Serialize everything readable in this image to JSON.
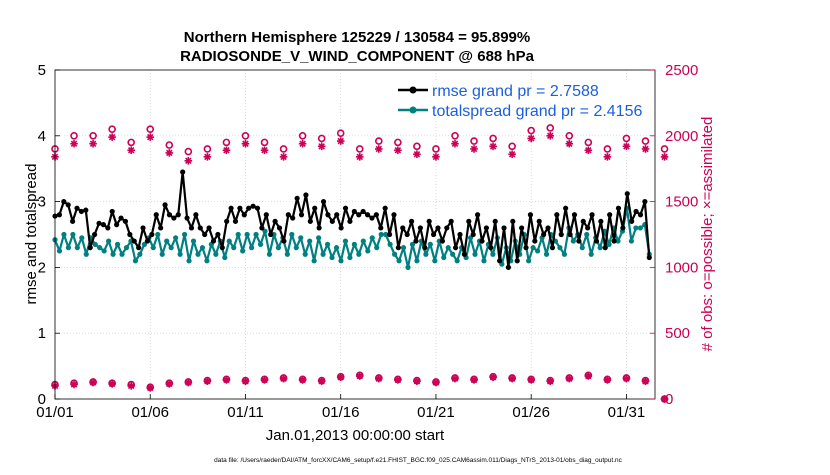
{
  "chart_data": {
    "type": "line",
    "title_line1": "Northern Hemisphere 125229 / 130584 = 95.899%",
    "title_line2": "RADIOSONDE_V_WIND_COMPONENT @ 688 hPa",
    "xlabel": "Jan.01,2013 00:00:00 start",
    "ylabel_left": "rmse and totalspread",
    "ylabel_right": "# of obs: o=possible; ×=assimilated",
    "footnote": "data file: /Users/raeder/DAI/ATM_forcXX/CAM6_setup/f.e21.FHIST_BGC.f09_025.CAM6assim.011/Diags_NTrS_2013-01/obs_diag_output.nc",
    "x_range": [
      1,
      32.5
    ],
    "ylim_left": [
      0,
      5
    ],
    "ylim_right": [
      0,
      2500
    ],
    "x_ticks": [
      {
        "value": 1,
        "label": "01/01"
      },
      {
        "value": 6,
        "label": "01/06"
      },
      {
        "value": 11,
        "label": "01/11"
      },
      {
        "value": 16,
        "label": "01/16"
      },
      {
        "value": 21,
        "label": "01/21"
      },
      {
        "value": 26,
        "label": "01/26"
      },
      {
        "value": 31,
        "label": "01/31"
      }
    ],
    "y_ticks_left": [
      "0",
      "1",
      "2",
      "3",
      "4",
      "5"
    ],
    "y_ticks_right": [
      "0",
      "500",
      "1000",
      "1500",
      "2000",
      "2500"
    ],
    "legend": [
      {
        "label": "rmse grand pr = 2.7588",
        "color": "#000000"
      },
      {
        "label": "totalspread grand pr = 2.4156",
        "color": "#008080"
      }
    ],
    "colors": {
      "rmse": "#000000",
      "spread": "#008080",
      "obs": "#cc0055",
      "axis_right": "#cc0055"
    },
    "series": [
      {
        "name": "rmse",
        "axis": "left",
        "values": [
          2.78,
          2.8,
          3.0,
          2.95,
          2.7,
          2.9,
          2.85,
          2.87,
          2.3,
          2.5,
          2.67,
          2.65,
          2.6,
          2.85,
          2.65,
          2.75,
          2.7,
          2.5,
          2.4,
          2.3,
          2.6,
          2.4,
          2.5,
          2.8,
          2.6,
          2.95,
          2.8,
          2.75,
          2.8,
          3.45,
          2.75,
          2.6,
          2.8,
          2.6,
          2.5,
          2.6,
          2.4,
          2.5,
          2.3,
          2.7,
          2.9,
          2.7,
          2.9,
          2.8,
          2.9,
          2.93,
          2.9,
          2.6,
          2.8,
          2.5,
          2.7,
          2.6,
          2.4,
          2.8,
          2.75,
          3.05,
          2.8,
          3.1,
          2.7,
          2.9,
          2.6,
          3.0,
          2.8,
          2.7,
          2.8,
          2.6,
          2.9,
          2.7,
          2.85,
          2.8,
          2.85,
          2.8,
          2.75,
          2.8,
          2.6,
          2.9,
          2.5,
          2.8,
          2.3,
          2.6,
          2.5,
          2.7,
          2.4,
          2.6,
          2.3,
          2.7,
          2.5,
          2.6,
          2.4,
          2.6,
          2.7,
          2.3,
          2.5,
          2.2,
          2.7,
          2.5,
          2.8,
          2.4,
          2.6,
          2.3,
          2.7,
          2.1,
          2.6,
          2.0,
          2.7,
          2.1,
          2.6,
          2.3,
          2.8,
          2.4,
          2.7,
          2.5,
          2.6,
          2.3,
          2.8,
          2.5,
          2.9,
          2.5,
          2.8,
          2.4,
          2.7,
          2.6,
          2.8,
          2.4,
          2.7,
          2.3,
          2.8,
          2.4,
          2.9,
          2.6,
          3.12,
          2.7,
          2.85,
          2.8,
          3.0,
          2.15
        ]
      },
      {
        "name": "totalspread",
        "axis": "left",
        "values": [
          2.42,
          2.25,
          2.5,
          2.3,
          2.5,
          2.3,
          2.45,
          2.2,
          2.45,
          2.35,
          2.3,
          2.25,
          2.4,
          2.2,
          2.35,
          2.2,
          2.3,
          2.4,
          2.1,
          2.2,
          2.35,
          2.45,
          2.3,
          2.5,
          2.2,
          2.4,
          2.3,
          2.45,
          2.2,
          2.5,
          2.1,
          2.4,
          2.2,
          2.3,
          2.1,
          2.35,
          2.2,
          2.4,
          2.15,
          2.4,
          2.3,
          2.5,
          2.25,
          2.5,
          2.3,
          2.5,
          2.35,
          2.55,
          2.2,
          2.5,
          2.3,
          2.45,
          2.2,
          2.5,
          2.3,
          2.45,
          2.2,
          2.4,
          2.1,
          2.45,
          2.2,
          2.35,
          2.15,
          2.3,
          2.1,
          2.4,
          2.15,
          2.35,
          2.2,
          2.4,
          2.25,
          2.45,
          2.3,
          2.5,
          2.5,
          2.35,
          2.2,
          2.1,
          2.3,
          2.0,
          2.35,
          2.1,
          2.4,
          2.2,
          2.35,
          2.1,
          2.4,
          2.15,
          2.3,
          2.2,
          2.1,
          2.3,
          2.15,
          2.45,
          2.2,
          2.4,
          2.1,
          2.35,
          2.2,
          2.45,
          2.05,
          2.3,
          2.1,
          2.4,
          2.2,
          2.5,
          2.1,
          2.3,
          2.25,
          2.45,
          2.2,
          2.5,
          2.4,
          2.3,
          2.2,
          2.6,
          2.4,
          2.5,
          2.3,
          2.5,
          2.2,
          2.45,
          2.3,
          2.55,
          2.35,
          2.6,
          2.4,
          2.55,
          2.9,
          2.4,
          2.6,
          2.6,
          2.65,
          2.2
        ]
      },
      {
        "name": "obs_possible_high",
        "axis": "right",
        "values": [
          1900,
          2000,
          2000,
          2050,
          1950,
          2050,
          1930,
          1880,
          1900,
          1950,
          2000,
          1950,
          1900,
          2000,
          1980,
          2020,
          1900,
          1960,
          1950,
          1920,
          1900,
          2000,
          1960,
          1980,
          1920,
          2040,
          2060,
          2000,
          1950,
          1900,
          1980,
          1960,
          1900
        ]
      },
      {
        "name": "obs_assimilated_high",
        "axis": "right",
        "values": [
          1840,
          1940,
          1940,
          1990,
          1890,
          1990,
          1870,
          1810,
          1840,
          1890,
          1940,
          1890,
          1840,
          1940,
          1920,
          1960,
          1840,
          1900,
          1890,
          1860,
          1840,
          1940,
          1900,
          1920,
          1860,
          1980,
          2000,
          1940,
          1890,
          1840,
          1920,
          1900,
          1840
        ]
      },
      {
        "name": "obs_possible_low",
        "axis": "right",
        "values": [
          110,
          120,
          130,
          120,
          110,
          90,
          120,
          130,
          140,
          150,
          140,
          150,
          160,
          150,
          140,
          170,
          180,
          160,
          150,
          140,
          130,
          160,
          150,
          170,
          160,
          150,
          140,
          160,
          180,
          150,
          160,
          140,
          0
        ]
      },
      {
        "name": "obs_assimilated_low",
        "axis": "right",
        "values": [
          100,
          110,
          125,
          115,
          100,
          85,
          115,
          125,
          135,
          145,
          135,
          145,
          155,
          145,
          135,
          165,
          175,
          155,
          145,
          135,
          125,
          155,
          145,
          165,
          155,
          145,
          135,
          155,
          175,
          145,
          155,
          135,
          0
        ]
      }
    ]
  }
}
